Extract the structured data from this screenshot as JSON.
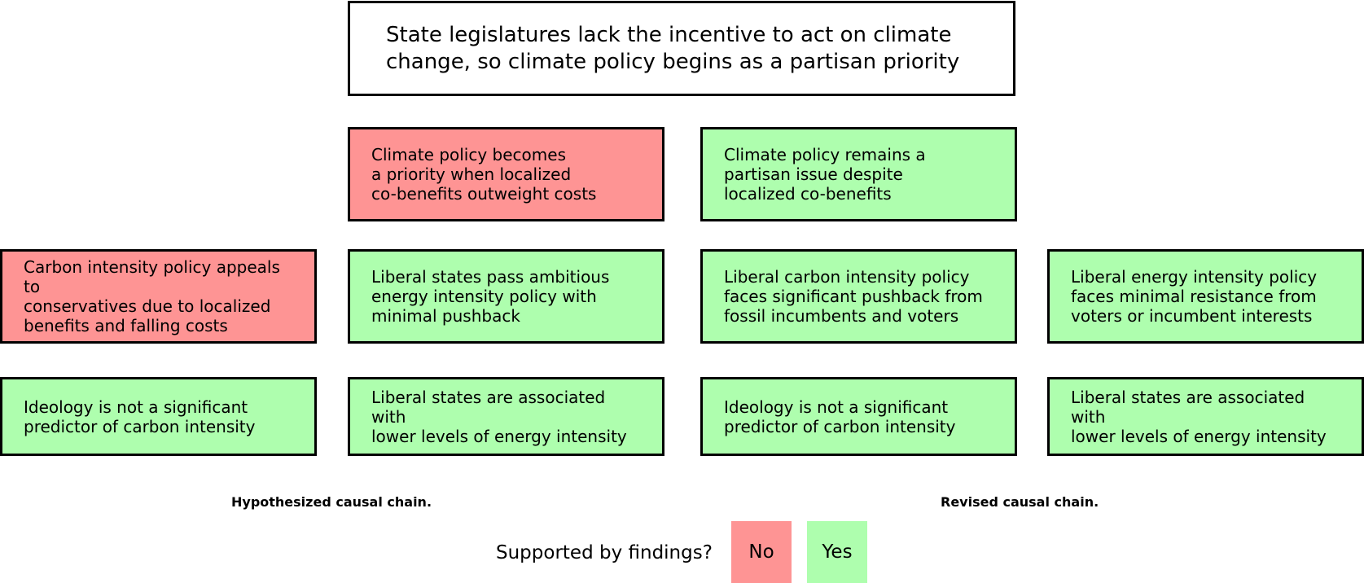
{
  "top_box": "State legislatures lack the incentive to act on climate\nchange, so climate policy begins as a partisan priority",
  "row1": {
    "left": "Climate policy becomes\na priority when localized\nco-benefits outweight costs",
    "right": "Climate policy remains a\npartisan issue despite\nlocalized co-benefits"
  },
  "row2": {
    "col1": "Carbon intensity policy appeals to\nconservatives due to localized\nbenefits and falling costs",
    "col2": "Liberal states pass ambitious\nenergy intensity policy with\nminimal pushback",
    "col3": "Liberal carbon intensity policy\nfaces significant pushback from\nfossil incumbents and voters",
    "col4": "Liberal energy intensity policy\nfaces minimal resistance from\nvoters or incumbent interests"
  },
  "row3": {
    "col1": "Ideology is not a significant\npredictor of carbon intensity",
    "col2": "Liberal states are associated with\nlower levels of energy intensity",
    "col3": "Ideology is not a significant\npredictor of carbon intensity",
    "col4": "Liberal states are associated with\nlower levels of energy intensity"
  },
  "captions": {
    "left": "Hypothesized causal chain.",
    "right": "Revised causal chain."
  },
  "legend": {
    "label": "Supported by findings?",
    "no": "No",
    "yes": "Yes"
  },
  "colors": {
    "not_supported": "#fe9494",
    "supported": "#aefeae"
  }
}
